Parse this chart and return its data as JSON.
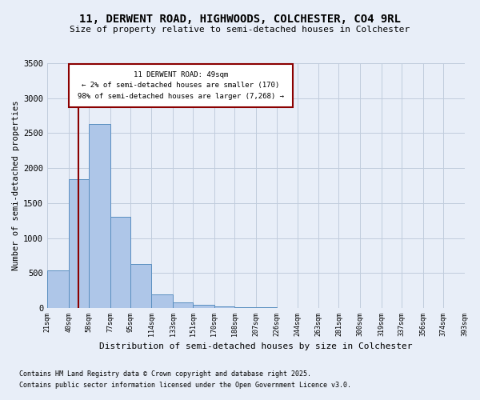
{
  "title_line1": "11, DERWENT ROAD, HIGHWOODS, COLCHESTER, CO4 9RL",
  "title_line2": "Size of property relative to semi-detached houses in Colchester",
  "xlabel": "Distribution of semi-detached houses by size in Colchester",
  "ylabel": "Number of semi-detached properties",
  "footnote1": "Contains HM Land Registry data © Crown copyright and database right 2025.",
  "footnote2": "Contains public sector information licensed under the Open Government Licence v3.0.",
  "annotation_title": "11 DERWENT ROAD: 49sqm",
  "annotation_line2": "← 2% of semi-detached houses are smaller (170)",
  "annotation_line3": "98% of semi-detached houses are larger (7,268) →",
  "bar_edges": [
    21,
    40,
    58,
    77,
    95,
    114,
    133,
    151,
    170,
    188,
    207,
    226,
    244,
    263,
    281,
    300,
    319,
    337,
    356,
    374,
    393
  ],
  "bar_heights": [
    535,
    1840,
    2630,
    1300,
    630,
    200,
    80,
    50,
    30,
    15,
    8,
    5,
    3,
    2,
    1,
    1,
    0,
    0,
    0,
    0
  ],
  "bar_color": "#aec6e8",
  "bar_edge_color": "#5a8fc0",
  "vline_color": "#8b0000",
  "vline_position": 49,
  "ylim": [
    0,
    3500
  ],
  "yticks": [
    0,
    500,
    1000,
    1500,
    2000,
    2500,
    3000,
    3500
  ],
  "bg_color": "#e8eef8",
  "grid_color": "#c0ccdd",
  "annotation_box_color": "#8b0000",
  "annotation_bg": "#ffffff"
}
